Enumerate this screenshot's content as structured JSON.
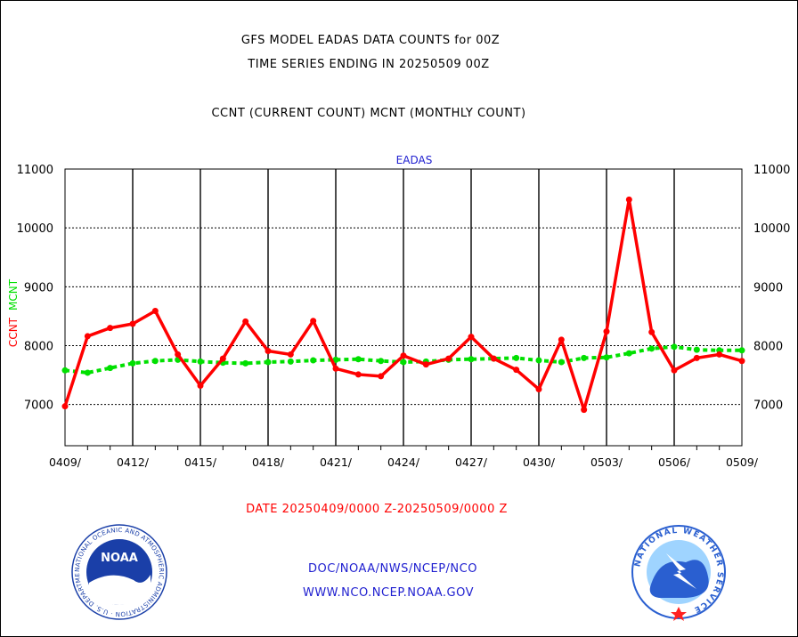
{
  "header": {
    "title_line1": "GFS MODEL EADAS DATA COUNTS for 00Z",
    "title_line2": "TIME SERIES ENDING IN 20250509 00Z",
    "subtitle": "CCNT (CURRENT COUNT) MCNT (MONTHLY COUNT)"
  },
  "footer": {
    "date_range": "DATE 20250409/0000 Z-20250509/0000 Z",
    "org_line": "DOC/NOAA/NWS/NCEP/NCO",
    "website": "WWW.NCO.NCEP.NOAA.GOV"
  },
  "logos": {
    "noaa_text": "NOAA",
    "noaa_ring_text": "NATIONAL OCEANIC AND ATMOSPHERIC ADMINISTRATION · U.S. DEPARTMENT OF COMMERCE ·",
    "nws_ring_text": "NATIONAL WEATHER SERVICE"
  },
  "colors": {
    "ccnt": "#ff0000",
    "mcnt": "#00e000",
    "panel_label": "#2020d0",
    "noaa_blue": "#1a3fa8",
    "nws_blue": "#2a5fd0"
  },
  "chart_data": {
    "type": "line",
    "title": "EADAS",
    "ylabel_ccnt": "CCNT",
    "ylabel_mcnt": "MCNT",
    "ylim": [
      6300,
      11000
    ],
    "yticks": [
      7000,
      8000,
      9000,
      10000,
      11000
    ],
    "xlim": [
      0,
      30
    ],
    "grid": true,
    "x_tick_positions": [
      0,
      3,
      6,
      9,
      12,
      15,
      18,
      21,
      24,
      27,
      30
    ],
    "x_tick_labels": [
      "0409/",
      "0412/",
      "0415/",
      "0418/",
      "0421/",
      "0424/",
      "0427/",
      "0430/",
      "0503/",
      "0506/",
      "0509/"
    ],
    "series": [
      {
        "name": "CCNT",
        "color": "#ff0000",
        "values": [
          6970,
          8160,
          8300,
          8370,
          8590,
          7850,
          7320,
          7780,
          8410,
          7910,
          7850,
          8420,
          7610,
          7510,
          7480,
          7830,
          7680,
          7780,
          8150,
          7780,
          7590,
          7260,
          8100,
          6910,
          8240,
          10480,
          8230,
          7580,
          7790,
          7850,
          7740
        ]
      },
      {
        "name": "MCNT",
        "color": "#00e000",
        "values": [
          7580,
          7540,
          7620,
          7700,
          7740,
          7760,
          7730,
          7710,
          7700,
          7720,
          7730,
          7750,
          7760,
          7770,
          7740,
          7720,
          7730,
          7760,
          7770,
          7780,
          7790,
          7750,
          7720,
          7790,
          7800,
          7870,
          7950,
          7980,
          7930,
          7920,
          7920
        ]
      }
    ]
  }
}
